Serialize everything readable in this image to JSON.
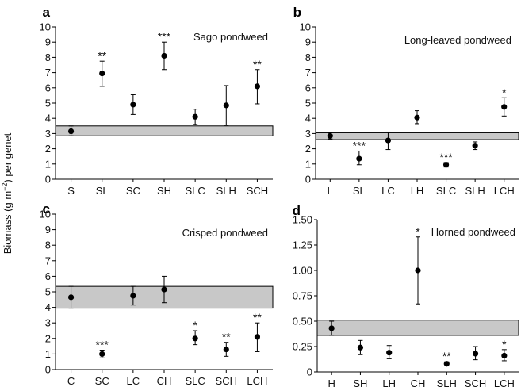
{
  "ylabel_prefix": "Biomass (g m",
  "ylabel_sup": "−2",
  "ylabel_suffix": ") per genet",
  "chart_data": [
    {
      "type": "scatter",
      "panel": "a",
      "title": "Sago pondweed",
      "categories": [
        "S",
        "SL",
        "SC",
        "SH",
        "SLC",
        "SLH",
        "SCH"
      ],
      "values": [
        3.15,
        6.95,
        4.9,
        8.1,
        4.1,
        4.85,
        6.1
      ],
      "err_low": [
        2.85,
        6.1,
        4.25,
        7.2,
        3.6,
        3.55,
        4.95
      ],
      "err_high": [
        3.5,
        7.75,
        5.55,
        9.0,
        4.6,
        6.15,
        7.2
      ],
      "sig": [
        "",
        "**",
        "",
        "***",
        "",
        "",
        "**"
      ],
      "band": [
        2.85,
        3.5
      ],
      "ylim": [
        0,
        10
      ],
      "yticks": [
        "0",
        "1",
        "2",
        "3",
        "4",
        "5",
        "6",
        "7",
        "8",
        "9",
        "10"
      ]
    },
    {
      "type": "scatter",
      "panel": "b",
      "title": "Long-leaved pondweed",
      "categories": [
        "L",
        "SL",
        "LC",
        "LH",
        "SLC",
        "SLH",
        "LCH"
      ],
      "values": [
        2.85,
        1.35,
        2.55,
        4.05,
        0.95,
        2.2,
        4.75
      ],
      "err_low": [
        2.65,
        0.95,
        1.95,
        3.65,
        0.8,
        1.95,
        4.15
      ],
      "err_high": [
        3.05,
        1.85,
        3.1,
        4.5,
        1.1,
        2.45,
        5.35
      ],
      "sig": [
        "",
        "***",
        "",
        "",
        "***",
        "",
        "*"
      ],
      "band": [
        2.6,
        3.05
      ],
      "ylim": [
        0,
        10
      ],
      "yticks": [
        "0",
        "1",
        "2",
        "3",
        "4",
        "5",
        "6",
        "7",
        "8",
        "9",
        "10"
      ]
    },
    {
      "type": "scatter",
      "panel": "c",
      "title": "Crisped pondweed",
      "categories": [
        "C",
        "SC",
        "LC",
        "CH",
        "SLC",
        "SCH",
        "LCH"
      ],
      "values": [
        4.65,
        1.0,
        4.75,
        5.15,
        2.0,
        1.3,
        2.1
      ],
      "err_low": [
        3.95,
        0.75,
        4.15,
        4.3,
        1.6,
        0.85,
        1.15
      ],
      "err_high": [
        5.35,
        1.25,
        5.35,
        6.0,
        2.5,
        1.75,
        3.0
      ],
      "sig": [
        "",
        "***",
        "",
        "",
        "*",
        "**",
        "**"
      ],
      "band": [
        3.95,
        5.35
      ],
      "ylim": [
        0,
        10
      ],
      "yticks": [
        "0",
        "1",
        "2",
        "3",
        "4",
        "5",
        "6",
        "7",
        "8",
        "9",
        "10"
      ]
    },
    {
      "type": "scatter",
      "panel": "d",
      "title": "Horned pondweed",
      "categories": [
        "H",
        "SH",
        "LH",
        "CH",
        "SLH",
        "SCH",
        "LCH"
      ],
      "values": [
        0.43,
        0.24,
        0.19,
        1.0,
        0.08,
        0.18,
        0.16
      ],
      "err_low": [
        0.36,
        0.17,
        0.13,
        0.67,
        0.06,
        0.12,
        0.11
      ],
      "err_high": [
        0.5,
        0.31,
        0.26,
        1.33,
        0.1,
        0.25,
        0.22
      ],
      "sig": [
        "",
        "",
        "",
        "*",
        "**",
        "",
        "*"
      ],
      "band": [
        0.36,
        0.51
      ],
      "ylim": [
        0,
        1.5
      ],
      "yticks": [
        "0",
        "0.25",
        "0.50",
        "0.75",
        "1.00",
        "1.25",
        "1.50"
      ]
    }
  ]
}
